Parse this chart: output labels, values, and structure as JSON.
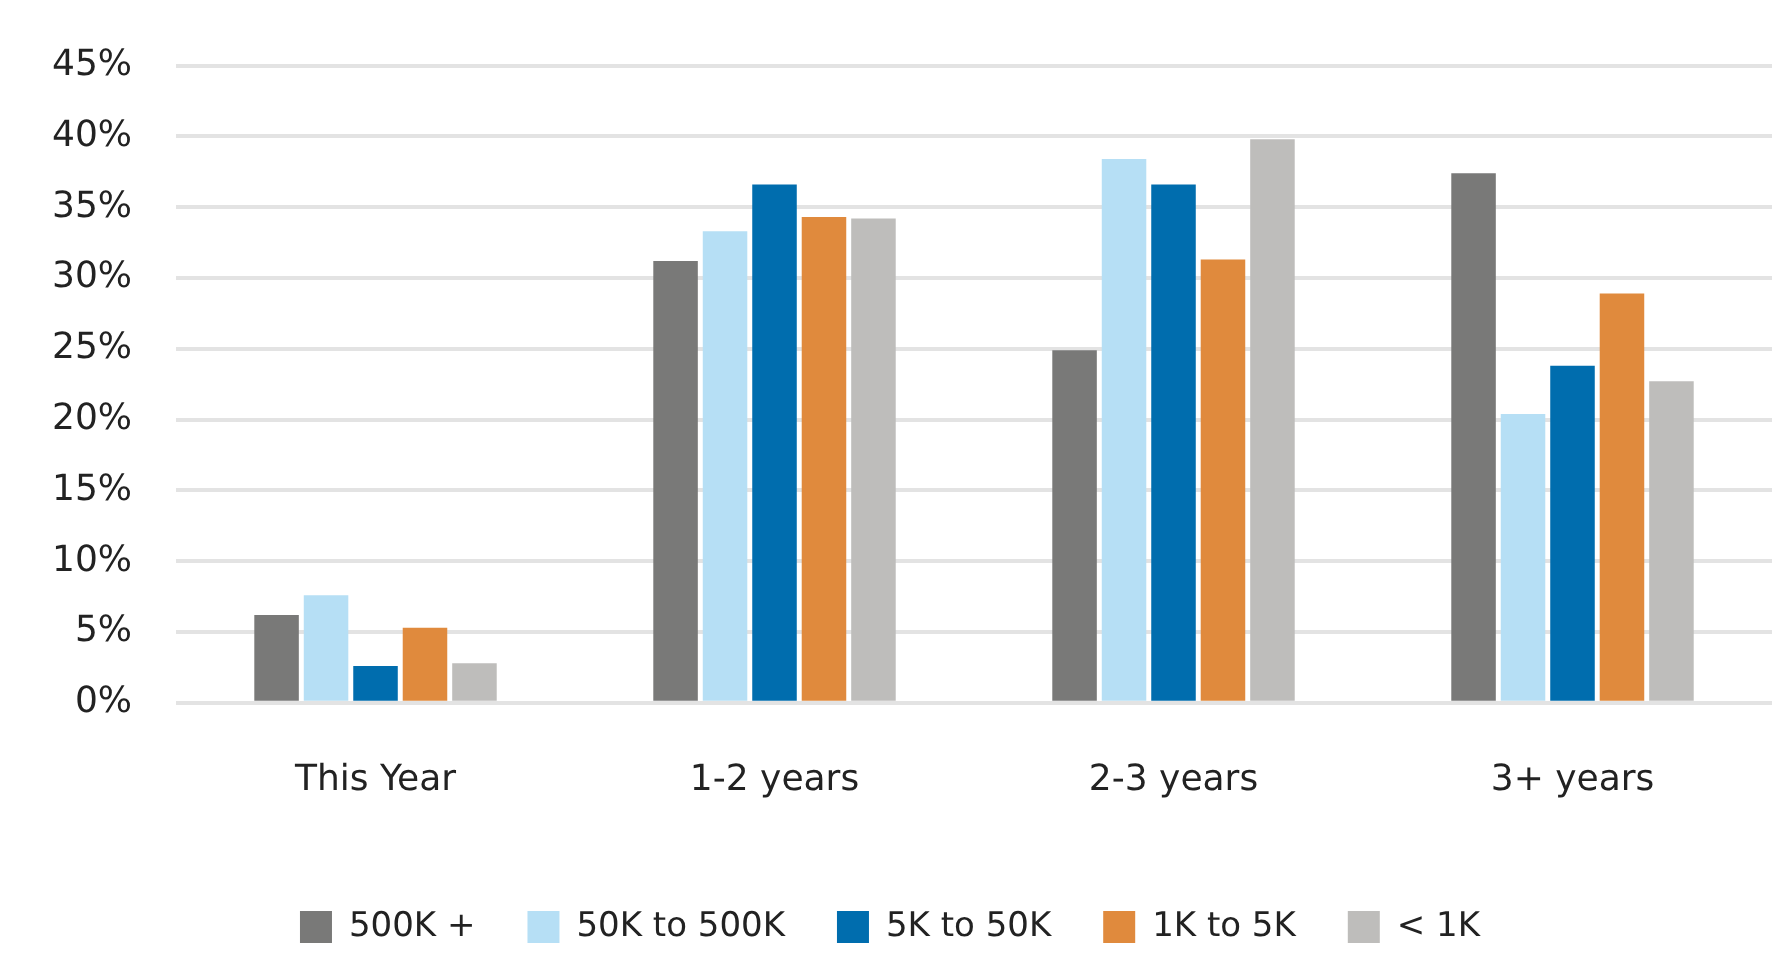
{
  "chart_data": {
    "type": "bar",
    "categories": [
      "This Year",
      "1-2 years",
      "2-3 years",
      "3+ years"
    ],
    "series": [
      {
        "name": "500K +",
        "color": "#797978",
        "values": [
          6.2,
          31.2,
          24.9,
          37.4
        ]
      },
      {
        "name": "50K to 500K",
        "color": "#b6dff5",
        "values": [
          7.6,
          33.3,
          38.4,
          20.4
        ]
      },
      {
        "name": "5K to 50K",
        "color": "#006dae",
        "values": [
          2.6,
          36.6,
          36.6,
          23.8
        ]
      },
      {
        "name": "1K to 5K",
        "color": "#e08a3d",
        "values": [
          5.3,
          34.3,
          31.3,
          28.9
        ]
      },
      {
        "name": "< 1K",
        "color": "#bebdbb",
        "values": [
          2.8,
          34.2,
          39.8,
          22.7
        ]
      }
    ],
    "ylim": [
      0,
      45
    ],
    "yticks": [
      {
        "value": 0,
        "label": "0%"
      },
      {
        "value": 5,
        "label": "5%"
      },
      {
        "value": 10,
        "label": "10%"
      },
      {
        "value": 15,
        "label": "15%"
      },
      {
        "value": 20,
        "label": "20%"
      },
      {
        "value": 25,
        "label": "25%"
      },
      {
        "value": 30,
        "label": "30%"
      },
      {
        "value": 35,
        "label": "35%"
      },
      {
        "value": 40,
        "label": "40%"
      },
      {
        "value": 45,
        "label": "45%"
      }
    ],
    "grid": "y",
    "legend": "bottom"
  }
}
